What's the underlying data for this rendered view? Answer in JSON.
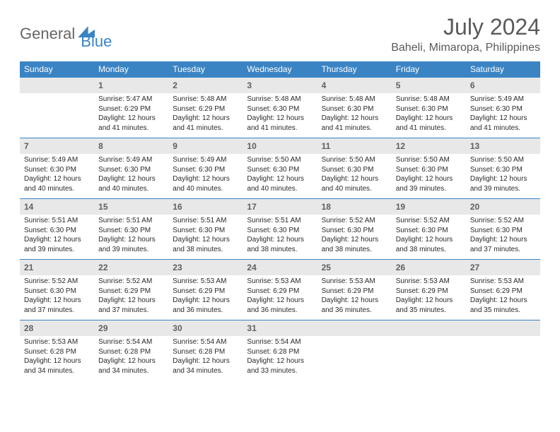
{
  "logo": {
    "part1": "General",
    "part2": "Blue"
  },
  "title": "July 2024",
  "location": "Baheli, Mimaropa, Philippines",
  "colors": {
    "header_bg": "#3b84c4",
    "daynum_bg": "#e8e8e8",
    "text": "#3a3a3a",
    "title_text": "#5a5a5a",
    "border": "#3b84c4"
  },
  "day_headers": [
    "Sunday",
    "Monday",
    "Tuesday",
    "Wednesday",
    "Thursday",
    "Friday",
    "Saturday"
  ],
  "weeks": [
    [
      null,
      {
        "n": "1",
        "sr": "Sunrise: 5:47 AM",
        "ss": "Sunset: 6:29 PM",
        "dl": "Daylight: 12 hours and 41 minutes."
      },
      {
        "n": "2",
        "sr": "Sunrise: 5:48 AM",
        "ss": "Sunset: 6:29 PM",
        "dl": "Daylight: 12 hours and 41 minutes."
      },
      {
        "n": "3",
        "sr": "Sunrise: 5:48 AM",
        "ss": "Sunset: 6:30 PM",
        "dl": "Daylight: 12 hours and 41 minutes."
      },
      {
        "n": "4",
        "sr": "Sunrise: 5:48 AM",
        "ss": "Sunset: 6:30 PM",
        "dl": "Daylight: 12 hours and 41 minutes."
      },
      {
        "n": "5",
        "sr": "Sunrise: 5:48 AM",
        "ss": "Sunset: 6:30 PM",
        "dl": "Daylight: 12 hours and 41 minutes."
      },
      {
        "n": "6",
        "sr": "Sunrise: 5:49 AM",
        "ss": "Sunset: 6:30 PM",
        "dl": "Daylight: 12 hours and 41 minutes."
      }
    ],
    [
      {
        "n": "7",
        "sr": "Sunrise: 5:49 AM",
        "ss": "Sunset: 6:30 PM",
        "dl": "Daylight: 12 hours and 40 minutes."
      },
      {
        "n": "8",
        "sr": "Sunrise: 5:49 AM",
        "ss": "Sunset: 6:30 PM",
        "dl": "Daylight: 12 hours and 40 minutes."
      },
      {
        "n": "9",
        "sr": "Sunrise: 5:49 AM",
        "ss": "Sunset: 6:30 PM",
        "dl": "Daylight: 12 hours and 40 minutes."
      },
      {
        "n": "10",
        "sr": "Sunrise: 5:50 AM",
        "ss": "Sunset: 6:30 PM",
        "dl": "Daylight: 12 hours and 40 minutes."
      },
      {
        "n": "11",
        "sr": "Sunrise: 5:50 AM",
        "ss": "Sunset: 6:30 PM",
        "dl": "Daylight: 12 hours and 40 minutes."
      },
      {
        "n": "12",
        "sr": "Sunrise: 5:50 AM",
        "ss": "Sunset: 6:30 PM",
        "dl": "Daylight: 12 hours and 39 minutes."
      },
      {
        "n": "13",
        "sr": "Sunrise: 5:50 AM",
        "ss": "Sunset: 6:30 PM",
        "dl": "Daylight: 12 hours and 39 minutes."
      }
    ],
    [
      {
        "n": "14",
        "sr": "Sunrise: 5:51 AM",
        "ss": "Sunset: 6:30 PM",
        "dl": "Daylight: 12 hours and 39 minutes."
      },
      {
        "n": "15",
        "sr": "Sunrise: 5:51 AM",
        "ss": "Sunset: 6:30 PM",
        "dl": "Daylight: 12 hours and 39 minutes."
      },
      {
        "n": "16",
        "sr": "Sunrise: 5:51 AM",
        "ss": "Sunset: 6:30 PM",
        "dl": "Daylight: 12 hours and 38 minutes."
      },
      {
        "n": "17",
        "sr": "Sunrise: 5:51 AM",
        "ss": "Sunset: 6:30 PM",
        "dl": "Daylight: 12 hours and 38 minutes."
      },
      {
        "n": "18",
        "sr": "Sunrise: 5:52 AM",
        "ss": "Sunset: 6:30 PM",
        "dl": "Daylight: 12 hours and 38 minutes."
      },
      {
        "n": "19",
        "sr": "Sunrise: 5:52 AM",
        "ss": "Sunset: 6:30 PM",
        "dl": "Daylight: 12 hours and 38 minutes."
      },
      {
        "n": "20",
        "sr": "Sunrise: 5:52 AM",
        "ss": "Sunset: 6:30 PM",
        "dl": "Daylight: 12 hours and 37 minutes."
      }
    ],
    [
      {
        "n": "21",
        "sr": "Sunrise: 5:52 AM",
        "ss": "Sunset: 6:30 PM",
        "dl": "Daylight: 12 hours and 37 minutes."
      },
      {
        "n": "22",
        "sr": "Sunrise: 5:52 AM",
        "ss": "Sunset: 6:29 PM",
        "dl": "Daylight: 12 hours and 37 minutes."
      },
      {
        "n": "23",
        "sr": "Sunrise: 5:53 AM",
        "ss": "Sunset: 6:29 PM",
        "dl": "Daylight: 12 hours and 36 minutes."
      },
      {
        "n": "24",
        "sr": "Sunrise: 5:53 AM",
        "ss": "Sunset: 6:29 PM",
        "dl": "Daylight: 12 hours and 36 minutes."
      },
      {
        "n": "25",
        "sr": "Sunrise: 5:53 AM",
        "ss": "Sunset: 6:29 PM",
        "dl": "Daylight: 12 hours and 36 minutes."
      },
      {
        "n": "26",
        "sr": "Sunrise: 5:53 AM",
        "ss": "Sunset: 6:29 PM",
        "dl": "Daylight: 12 hours and 35 minutes."
      },
      {
        "n": "27",
        "sr": "Sunrise: 5:53 AM",
        "ss": "Sunset: 6:29 PM",
        "dl": "Daylight: 12 hours and 35 minutes."
      }
    ],
    [
      {
        "n": "28",
        "sr": "Sunrise: 5:53 AM",
        "ss": "Sunset: 6:28 PM",
        "dl": "Daylight: 12 hours and 34 minutes."
      },
      {
        "n": "29",
        "sr": "Sunrise: 5:54 AM",
        "ss": "Sunset: 6:28 PM",
        "dl": "Daylight: 12 hours and 34 minutes."
      },
      {
        "n": "30",
        "sr": "Sunrise: 5:54 AM",
        "ss": "Sunset: 6:28 PM",
        "dl": "Daylight: 12 hours and 34 minutes."
      },
      {
        "n": "31",
        "sr": "Sunrise: 5:54 AM",
        "ss": "Sunset: 6:28 PM",
        "dl": "Daylight: 12 hours and 33 minutes."
      },
      null,
      null,
      null
    ]
  ]
}
